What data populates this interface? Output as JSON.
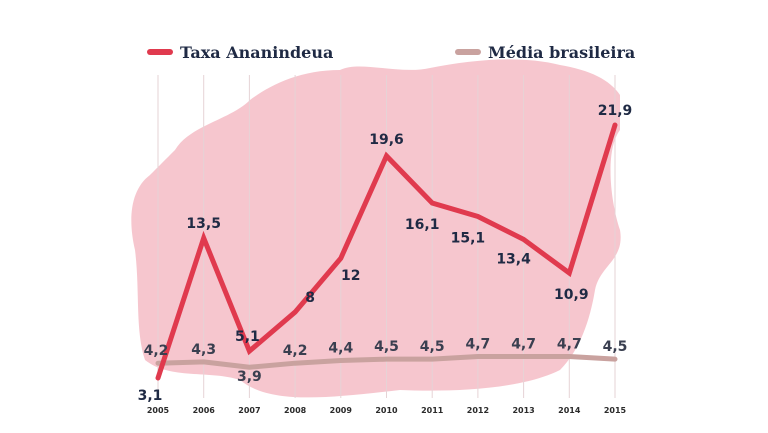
{
  "chart_data": {
    "type": "line",
    "title": "",
    "xlabel": "",
    "ylabel": "",
    "categories": [
      "2005",
      "2006",
      "2007",
      "2008",
      "2009",
      "2010",
      "2011",
      "2012",
      "2013",
      "2014",
      "2015"
    ],
    "series": [
      {
        "name": "Taxa Ananindeua",
        "color": "#e03a4e",
        "values": [
          3.1,
          13.5,
          5.1,
          8,
          12,
          19.6,
          16.1,
          15.1,
          13.4,
          10.9,
          21.9
        ],
        "labels": [
          "3,1",
          "13,5",
          "5,1",
          "8",
          "12",
          "19,6",
          "16,1",
          "15,1",
          "13,4",
          "10,9",
          "21,9"
        ]
      },
      {
        "name": "Média brasileira",
        "color": "#c9a29f",
        "values": [
          4.2,
          4.3,
          3.9,
          4.2,
          4.4,
          4.5,
          4.5,
          4.7,
          4.7,
          4.7,
          4.5
        ],
        "labels": [
          "4,2",
          "4,3",
          "3,9",
          "4,2",
          "4,4",
          "4,5",
          "4,5",
          "4,7",
          "4,7",
          "4,7",
          "4,5"
        ]
      }
    ],
    "ylim": [
      3.1,
      21.9
    ],
    "grid": "vertical",
    "legend": "top",
    "background_color": "#f2b8c3"
  }
}
